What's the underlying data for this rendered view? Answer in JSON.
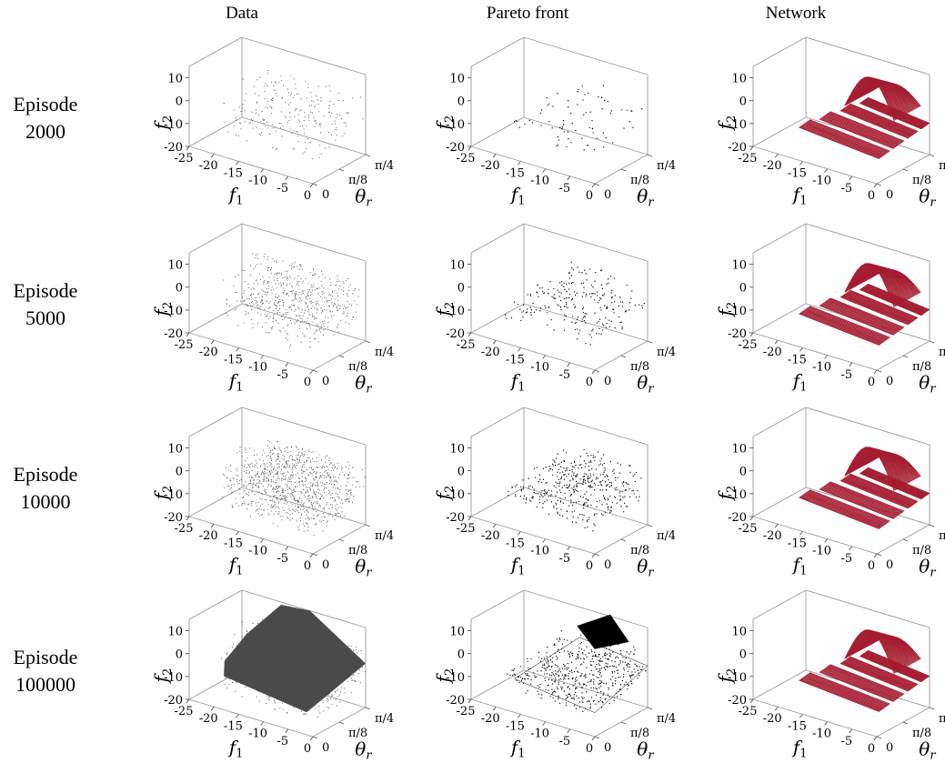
{
  "column_titles": [
    "Data",
    "Pareto front",
    "Network"
  ],
  "row_labels": [
    {
      "line1": "Episode",
      "line2": "2000"
    },
    {
      "line1": "Episode",
      "line2": "5000"
    },
    {
      "line1": "Episode",
      "line2": "10000"
    },
    {
      "line1": "Episode",
      "line2": "100000"
    }
  ],
  "axes": {
    "x_label": "f1",
    "y_label": "θr",
    "z_label": "f2",
    "x_ticks": [
      "-25",
      "-20",
      "-15",
      "-10",
      "-5",
      "0"
    ],
    "x_tick_values": [
      -25,
      -20,
      -15,
      -10,
      -5,
      0
    ],
    "y_ticks": [
      "0",
      "π/8",
      "π/4"
    ],
    "y_tick_values": [
      0,
      0.3927,
      0.7854
    ],
    "z_ticks": [
      "10",
      "0",
      "-10",
      "-20"
    ],
    "z_tick_values": [
      10,
      0,
      -10,
      -20
    ],
    "xlim": [
      -25,
      0
    ],
    "ylim": [
      0,
      0.7854
    ],
    "zlim": [
      -20,
      15
    ]
  },
  "colors": {
    "data": "#4a4a4a",
    "pareto": "#000000",
    "network": "#a51c30",
    "box": "#9a9a9a"
  },
  "chart_data": [
    {
      "type": "scatter",
      "panel": "data-episode-2000",
      "column": "Data",
      "episode": 2000,
      "density": 0.18
    },
    {
      "type": "scatter",
      "panel": "pareto-episode-2000",
      "column": "Pareto front",
      "episode": 2000,
      "density": 0.1
    },
    {
      "type": "surface",
      "panel": "network-episode-2000",
      "column": "Network",
      "episode": 2000
    },
    {
      "type": "scatter",
      "panel": "data-episode-5000",
      "column": "Data",
      "episode": 5000,
      "density": 0.45
    },
    {
      "type": "scatter",
      "panel": "pareto-episode-5000",
      "column": "Pareto front",
      "episode": 5000,
      "density": 0.3
    },
    {
      "type": "surface",
      "panel": "network-episode-5000",
      "column": "Network",
      "episode": 5000
    },
    {
      "type": "scatter",
      "panel": "data-episode-10000",
      "column": "Data",
      "episode": 10000,
      "density": 0.75
    },
    {
      "type": "scatter",
      "panel": "pareto-episode-10000",
      "column": "Pareto front",
      "episode": 10000,
      "density": 0.55
    },
    {
      "type": "surface",
      "panel": "network-episode-10000",
      "column": "Network",
      "episode": 10000
    },
    {
      "type": "scatter",
      "panel": "data-episode-100000",
      "column": "Data",
      "episode": 100000,
      "density": 1.0
    },
    {
      "type": "scatter",
      "panel": "pareto-episode-100000",
      "column": "Pareto front",
      "episode": 100000,
      "density": 1.0
    },
    {
      "type": "surface",
      "panel": "network-episode-100000",
      "column": "Network",
      "episode": 100000
    }
  ]
}
